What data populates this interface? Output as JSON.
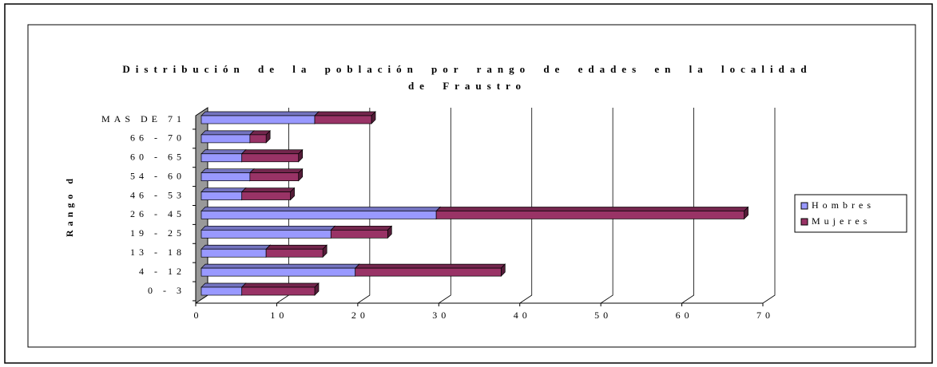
{
  "chart_data": {
    "type": "bar",
    "stacked": true,
    "title": "Distribución de la población por rango de edades en la localidad de Fraustro",
    "y_label": "Rango d",
    "categories": [
      "0 - 3",
      "4 - 12",
      "13 - 18",
      "19 - 25",
      "26 - 45",
      "46 - 53",
      "54 - 60",
      "60 - 65",
      "66 - 70",
      "MAS DE 71"
    ],
    "series": [
      {
        "name": "Hombres",
        "color": "#9999ff",
        "values": [
          5,
          19,
          8,
          16,
          29,
          5,
          6,
          5,
          6,
          14
        ]
      },
      {
        "name": "Mujeres",
        "color": "#993366",
        "values": [
          9,
          18,
          7,
          7,
          38,
          6,
          6,
          7,
          2,
          7
        ]
      }
    ],
    "xlim": [
      0,
      70
    ],
    "xticks": [
      0,
      10,
      20,
      30,
      40,
      50,
      60,
      70
    ],
    "grid": true,
    "legend": "right"
  }
}
